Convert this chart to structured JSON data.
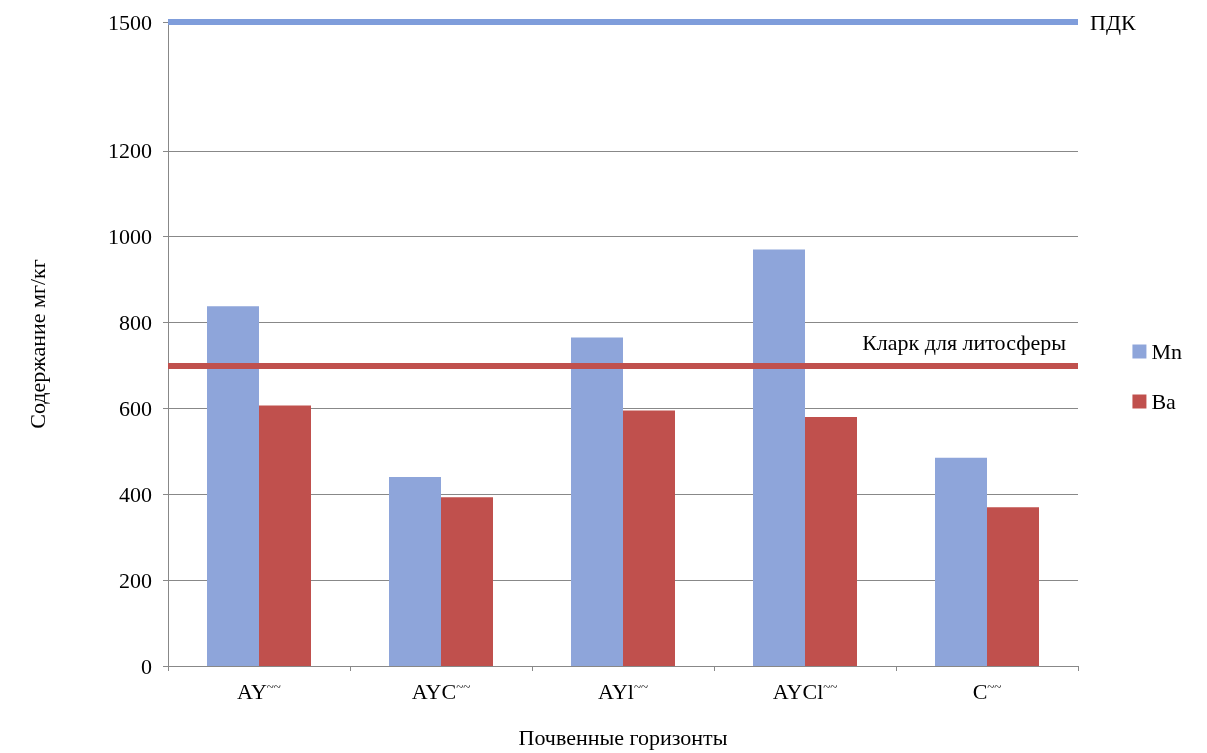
{
  "chart_data": {
    "type": "bar",
    "xlabel": "Почвенные горизонты",
    "ylabel": "Содержание мг/кг",
    "categories": [
      "AY$^{~~}$",
      "AYC$^{~~}$",
      "AYl$^{~~}$",
      "AYCl$^{~~}$",
      "C$^{~~}$"
    ],
    "series": [
      {
        "name": "Mn",
        "color": "#8ea5da",
        "values": [
          838,
          440,
          765,
          970,
          485
        ]
      },
      {
        "name": "Ba",
        "color": "#c0504d",
        "values": [
          607,
          393,
          595,
          580,
          370
        ]
      }
    ],
    "ylim": [
      0,
      1500
    ],
    "yticks": [
      0,
      200,
      400,
      600,
      800,
      1000,
      1200,
      1500
    ],
    "ref_lines": [
      {
        "axis": "y",
        "value": 1500,
        "label": "ПДК",
        "color": "#7f9ddb"
      },
      {
        "axis": "y",
        "value": 700,
        "label": "Кларк для литосферы",
        "color": "#c0504d"
      }
    ],
    "grid": "y",
    "legend": "right"
  }
}
